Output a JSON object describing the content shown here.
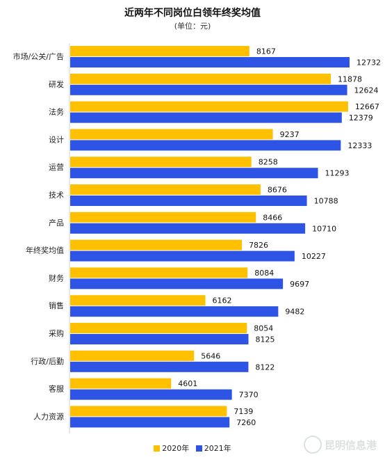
{
  "chart_data": {
    "type": "bar",
    "orientation": "horizontal",
    "title": "近两年不同岗位白领年终奖均值",
    "subtitle": "(单位：元)",
    "categories": [
      "市场/公关/广告",
      "研发",
      "法务",
      "设计",
      "运营",
      "技术",
      "产品",
      "年终奖均值",
      "财务",
      "销售",
      "采购",
      "行政/后勤",
      "客服",
      "人力资源"
    ],
    "series": [
      {
        "name": "2020年",
        "color": "#FFC000",
        "values": [
          8167,
          11878,
          12667,
          9237,
          8258,
          8676,
          8466,
          7826,
          8084,
          6162,
          8054,
          5646,
          4601,
          7139
        ]
      },
      {
        "name": "2021年",
        "color": "#2E54E6",
        "values": [
          12732,
          12624,
          12379,
          12333,
          11293,
          10788,
          10710,
          10227,
          9697,
          9482,
          8125,
          8122,
          7370,
          7260
        ]
      }
    ],
    "xlim": [
      0,
      14000
    ],
    "grid": false,
    "legend_position": "bottom"
  },
  "watermark": {
    "text": "昆明信息港"
  }
}
